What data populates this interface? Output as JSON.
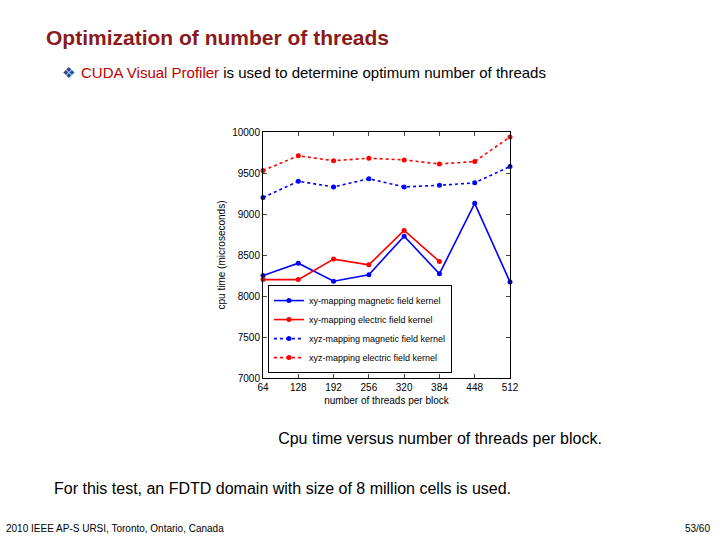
{
  "heading": "Optimization of number of threads",
  "bullet_symbol": "❖",
  "bullet_link": "CUDA Visual Profiler",
  "bullet_text": " is used to determine optimum number of threads",
  "caption": "Cpu time versus number of threads per block.",
  "note": "For this test, an FDTD domain with size of 8 million cells is used.",
  "footer_left": "2010 IEEE AP-S URSI, Toronto, Ontario, Canada",
  "footer_right": "53/60",
  "chart_data": {
    "type": "line",
    "x_label": "number of threads per block",
    "y_label": "cpu time (microseconds)",
    "x": [
      64,
      128,
      192,
      256,
      320,
      384,
      448,
      512
    ],
    "xlim": [
      64,
      512
    ],
    "xticks": [
      64,
      128,
      192,
      256,
      320,
      384,
      448,
      512
    ],
    "ylim": [
      7000,
      10000
    ],
    "yticks": [
      7000,
      7500,
      8000,
      8500,
      9000,
      9500,
      10000
    ],
    "grid": false,
    "legend": "lower left",
    "series": [
      {
        "name": "xy-mapping magnetic field kernel",
        "color": "#0000ff",
        "line_style": "solid",
        "marker": "circle",
        "values": [
          8250,
          8400,
          8180,
          8260,
          8730,
          8270,
          9130,
          8170
        ]
      },
      {
        "name": "xy-mapping electric field kernel",
        "color": "#ff0000",
        "line_style": "solid",
        "marker": "circle",
        "values": [
          8200,
          8200,
          8450,
          8380,
          8800,
          8420,
          null,
          null
        ]
      },
      {
        "name": "xyz-mapping magnetic field kernel",
        "color": "#0000ff",
        "line_style": "dotted",
        "marker": "circle",
        "values": [
          9200,
          9400,
          9330,
          9430,
          9330,
          9350,
          9380,
          9580
        ]
      },
      {
        "name": "xyz-mapping electric field kernel",
        "color": "#ff0000",
        "line_style": "dotted",
        "marker": "circle",
        "values": [
          9530,
          9710,
          9650,
          9680,
          9660,
          9610,
          9640,
          9940
        ]
      }
    ]
  }
}
